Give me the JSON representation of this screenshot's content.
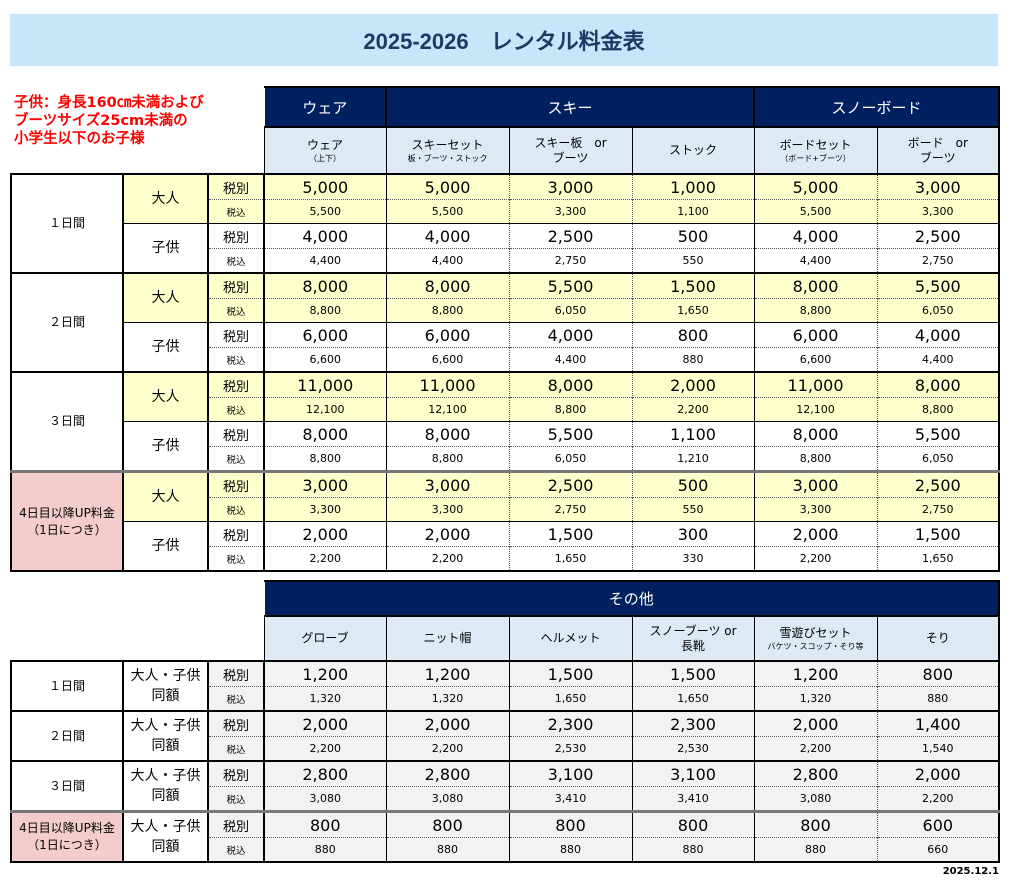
{
  "title": "2025-2026　レンタル料金表",
  "note": [
    "子供：身長160㎝未満および",
    "ブーツサイズ25cm未満の",
    "小学生以下のお子様"
  ],
  "date": "2025.12.1",
  "colors": {
    "header": "#002060",
    "subheader": "#dde9f5",
    "adult_row": "#ffffcc",
    "extra_day": "#f4cccc",
    "title_bg": "#c9e5fa",
    "note": "#ff0000"
  },
  "tax_labels": {
    "excl": "税別",
    "incl": "税込"
  },
  "rental": {
    "categories": [
      {
        "label": "ウェア",
        "span": 1
      },
      {
        "label": "スキー",
        "span": 3
      },
      {
        "label": "スノーボード",
        "span": 2
      }
    ],
    "items": [
      {
        "name": "ウェア",
        "sub": "（上下）"
      },
      {
        "name": "スキーセット",
        "sub": "板・ブーツ・ストック"
      },
      {
        "name": "スキー板　or",
        "sub2": "ブーツ"
      },
      {
        "name": "ストック"
      },
      {
        "name": "ボードセット",
        "sub": "（ボード+ブーツ）"
      },
      {
        "name": "ボード　or",
        "sub2": "ブーツ"
      }
    ],
    "blocks": [
      {
        "label": "１日間",
        "groups": [
          {
            "name": "大人",
            "excl": [
              "5,000",
              "5,000",
              "3,000",
              "1,000",
              "5,000",
              "3,000"
            ],
            "incl": [
              "5,500",
              "5,500",
              "3,300",
              "1,100",
              "5,500",
              "3,300"
            ]
          },
          {
            "name": "子供",
            "excl": [
              "4,000",
              "4,000",
              "2,500",
              "500",
              "4,000",
              "2,500"
            ],
            "incl": [
              "4,400",
              "4,400",
              "2,750",
              "550",
              "4,400",
              "2,750"
            ]
          }
        ]
      },
      {
        "label": "２日間",
        "groups": [
          {
            "name": "大人",
            "excl": [
              "8,000",
              "8,000",
              "5,500",
              "1,500",
              "8,000",
              "5,500"
            ],
            "incl": [
              "8,800",
              "8,800",
              "6,050",
              "1,650",
              "8,800",
              "6,050"
            ]
          },
          {
            "name": "子供",
            "excl": [
              "6,000",
              "6,000",
              "4,000",
              "800",
              "6,000",
              "4,000"
            ],
            "incl": [
              "6,600",
              "6,600",
              "4,400",
              "880",
              "6,600",
              "4,400"
            ]
          }
        ]
      },
      {
        "label": "３日間",
        "groups": [
          {
            "name": "大人",
            "excl": [
              "11,000",
              "11,000",
              "8,000",
              "2,000",
              "11,000",
              "8,000"
            ],
            "incl": [
              "12,100",
              "12,100",
              "8,800",
              "2,200",
              "12,100",
              "8,800"
            ]
          },
          {
            "name": "子供",
            "excl": [
              "8,000",
              "8,000",
              "5,500",
              "1,100",
              "8,000",
              "5,500"
            ],
            "incl": [
              "8,800",
              "8,800",
              "6,050",
              "1,210",
              "8,800",
              "6,050"
            ]
          }
        ]
      },
      {
        "label": "4日目以降UP料金",
        "label2": "（1日につき）",
        "groups": [
          {
            "name": "大人",
            "excl": [
              "3,000",
              "3,000",
              "2,500",
              "500",
              "3,000",
              "2,500"
            ],
            "incl": [
              "3,300",
              "3,300",
              "2,750",
              "550",
              "3,300",
              "2,750"
            ]
          },
          {
            "name": "子供",
            "excl": [
              "2,000",
              "2,000",
              "1,500",
              "300",
              "2,000",
              "1,500"
            ],
            "incl": [
              "2,200",
              "2,200",
              "1,650",
              "330",
              "2,200",
              "1,650"
            ]
          }
        ]
      }
    ]
  },
  "other": {
    "category": "その他",
    "items": [
      {
        "name": "グローブ"
      },
      {
        "name": "ニット帽"
      },
      {
        "name": "ヘルメット"
      },
      {
        "name": "スノーブーツ or",
        "sub2": "長靴"
      },
      {
        "name": "雪遊びセット",
        "sub": "バケツ・スコップ・そり等"
      },
      {
        "name": "そり"
      }
    ],
    "group": "大人・子供",
    "group2": "同額",
    "blocks": [
      {
        "label": "１日間",
        "excl": [
          "1,200",
          "1,200",
          "1,500",
          "1,500",
          "1,200",
          "800"
        ],
        "incl": [
          "1,320",
          "1,320",
          "1,650",
          "1,650",
          "1,320",
          "880"
        ]
      },
      {
        "label": "２日間",
        "excl": [
          "2,000",
          "2,000",
          "2,300",
          "2,300",
          "2,000",
          "1,400"
        ],
        "incl": [
          "2,200",
          "2,200",
          "2,530",
          "2,530",
          "2,200",
          "1,540"
        ]
      },
      {
        "label": "３日間",
        "excl": [
          "2,800",
          "2,800",
          "3,100",
          "3,100",
          "2,800",
          "2,000"
        ],
        "incl": [
          "3,080",
          "3,080",
          "3,410",
          "3,410",
          "3,080",
          "2,200"
        ]
      },
      {
        "label": "4日目以降UP料金",
        "label2": "（1日につき）",
        "excl": [
          "800",
          "800",
          "800",
          "800",
          "800",
          "600"
        ],
        "incl": [
          "880",
          "880",
          "880",
          "880",
          "880",
          "660"
        ]
      }
    ]
  }
}
